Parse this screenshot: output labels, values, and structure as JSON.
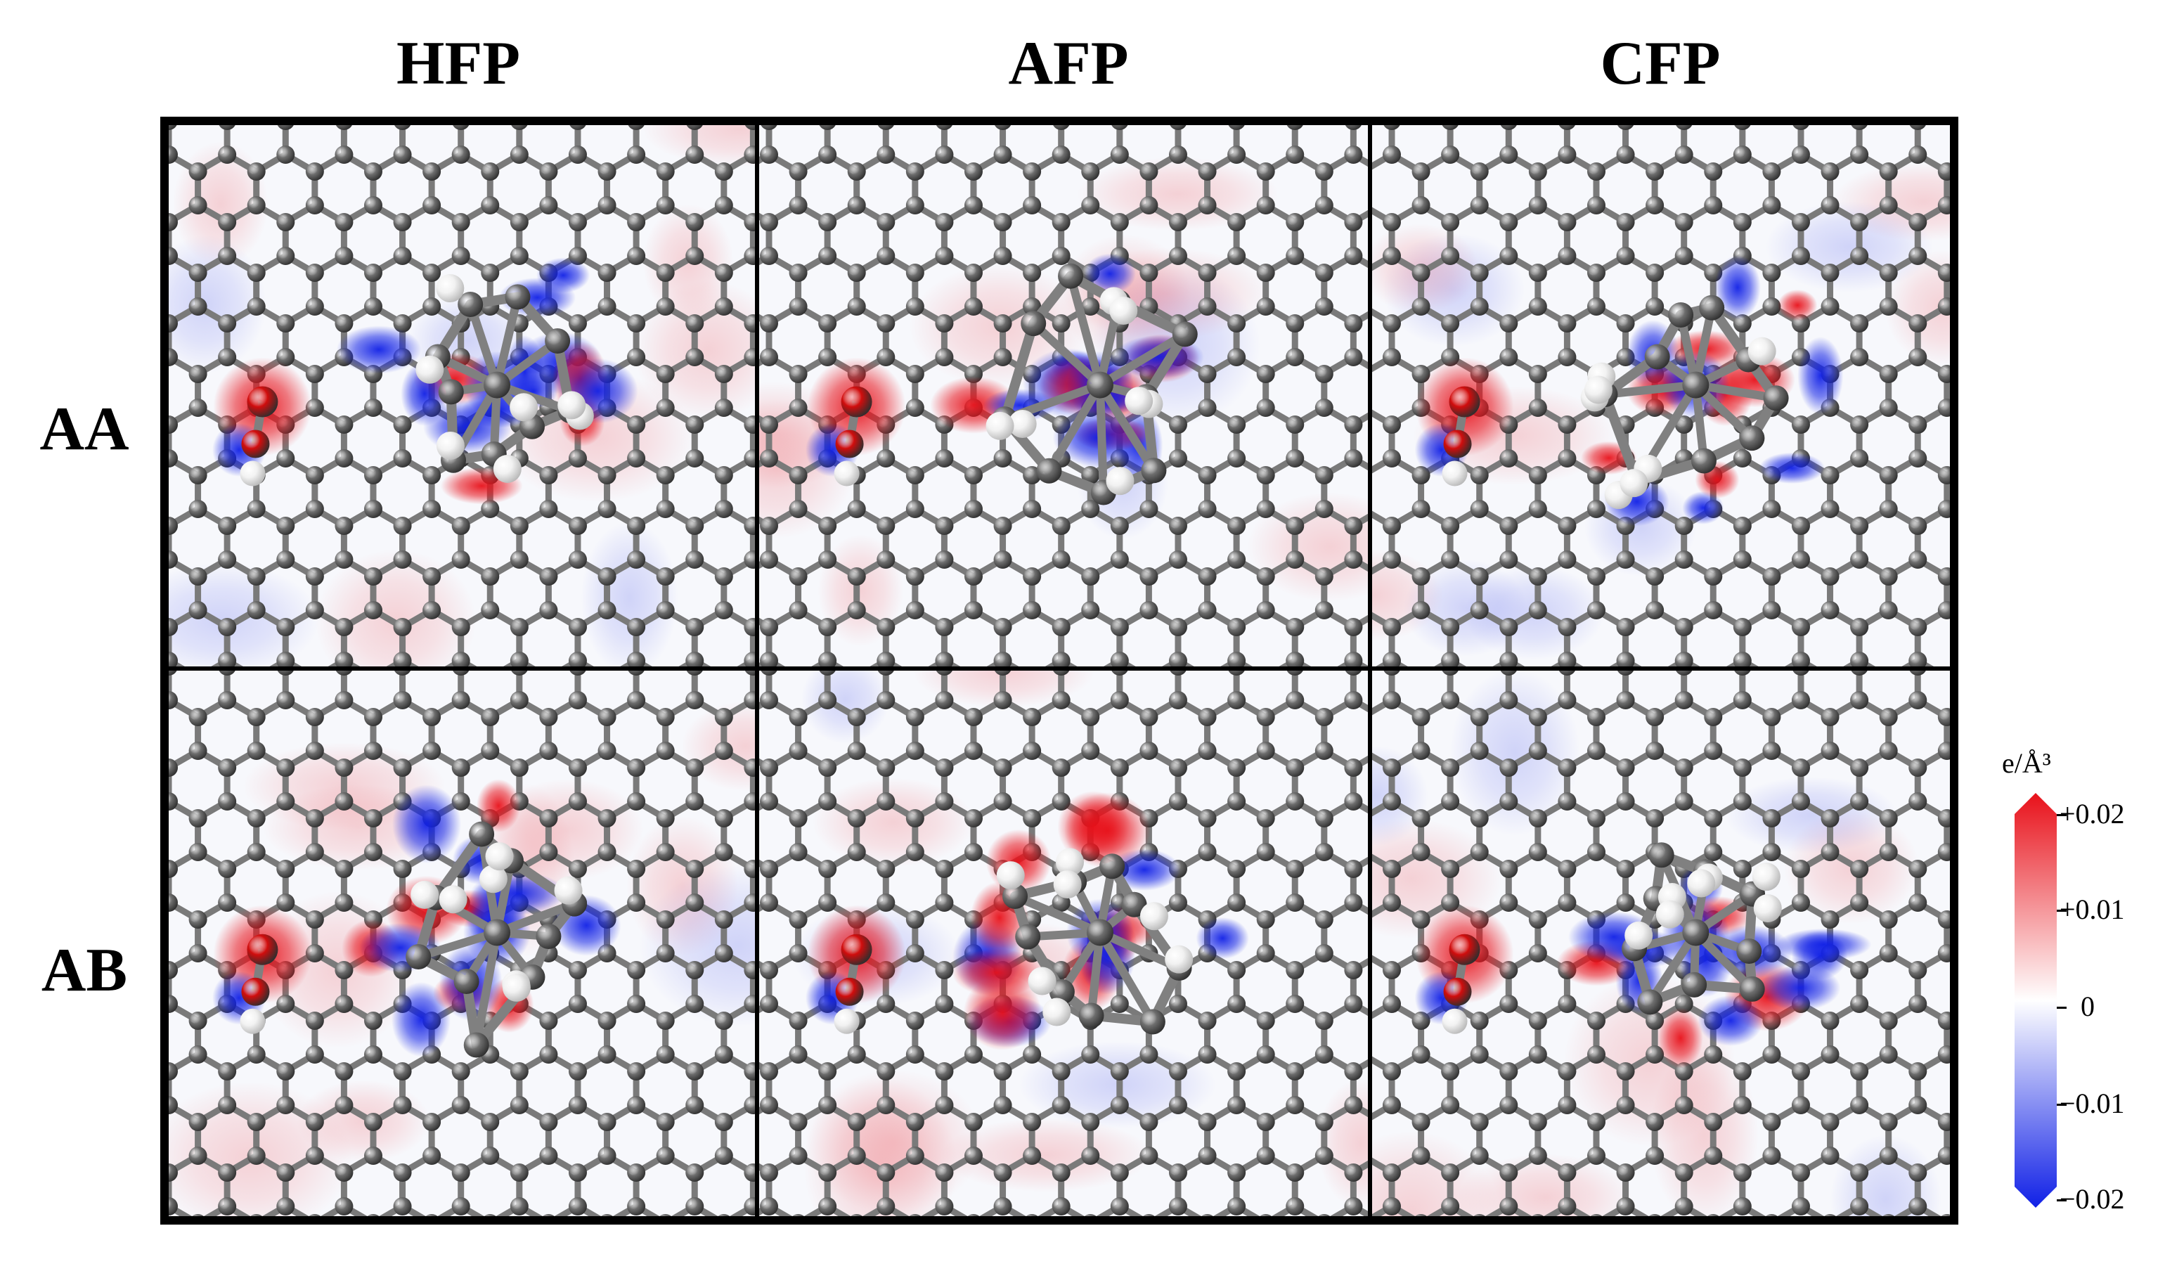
{
  "columns": [
    "HFP",
    "AFP",
    "CFP"
  ],
  "rows": [
    "AA",
    "AB"
  ],
  "colorbar": {
    "unit": "e/Å³",
    "ticks": [
      "+0.02",
      "+0.01",
      "0",
      "−0.01",
      "−0.02"
    ],
    "colors": {
      "positive": "#e8111a",
      "zero": "#ffffff",
      "negative": "#1020e6"
    }
  },
  "atom_colors": {
    "carbon": "#6e6e6e",
    "oxygen": "#d10d0d",
    "hydrogen": "#f2f2f2",
    "bond": "#7a7a7a"
  }
}
